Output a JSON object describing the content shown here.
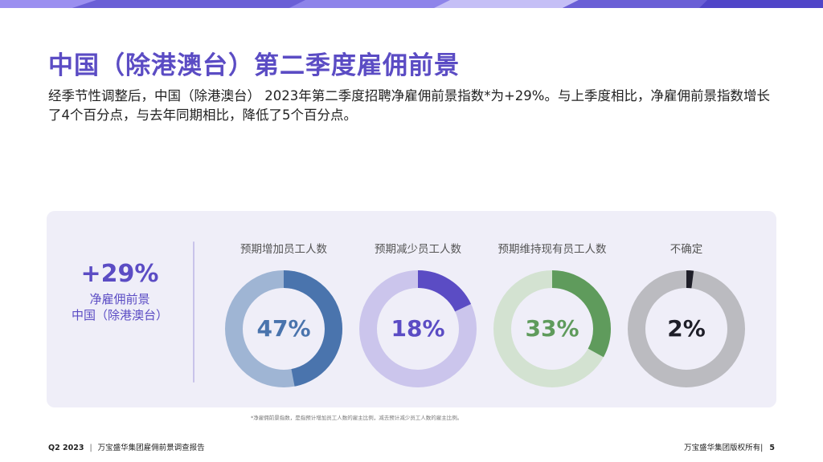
{
  "slide": {
    "title": "中国（除港澳台）第二季度雇佣前景",
    "intro": "经季节性调整后，中国（除港澳台） 2023年第二季度招聘净雇佣前景指数*为+29%。与上季度相比，净雇佣前景指数增长了4个百分点，与去年同期相比，降低了5个百分点。"
  },
  "hero": {
    "value": "+29%",
    "label_line1": "净雇佣前景",
    "label_line2": "中国（除港澳台）"
  },
  "donuts": [
    {
      "label": "预期增加员工人数",
      "value_text": "47%",
      "fraction": 0.47,
      "color": "#4a74ad",
      "track": "#9fb5d4",
      "text_color": "#4a74ad"
    },
    {
      "label": "预期减少员工人数",
      "value_text": "18%",
      "fraction": 0.18,
      "color": "#5b4cc4",
      "track": "#cbc5ec",
      "text_color": "#5b4cc4"
    },
    {
      "label": "预期维持现有员工人数",
      "value_text": "33%",
      "fraction": 0.33,
      "color": "#5f9b5c",
      "track": "#d3e2d1",
      "text_color": "#5f9b5c"
    },
    {
      "label": "不确定",
      "value_text": "2%",
      "fraction": 0.02,
      "color": "#1e1e28",
      "track": "#bbbbc0",
      "text_color": "#1e1e28"
    }
  ],
  "footnote": "*净雇佣前景指数，是指预计增加员工人数的雇主比例，减去预计减少员工人数的雇主比例。",
  "footer": {
    "quarter": "Q2 2023",
    "report": "万宝盛华集团雇佣前景调查报告",
    "copyright": "万宝盛华集团版权所有",
    "page": "5"
  },
  "colors": {
    "accent": "#5b4cc4",
    "panel": "#efeef8"
  }
}
